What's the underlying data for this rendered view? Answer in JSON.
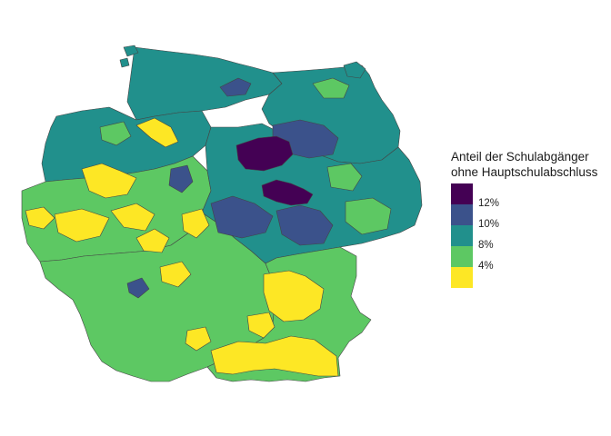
{
  "legend": {
    "title_line1": "Anteil der Schulabgänger",
    "title_line2": "ohne Hauptschulabschluss",
    "keys": [
      {
        "color": "#440154",
        "label": ""
      },
      {
        "color": "#3b528b",
        "label": "12%"
      },
      {
        "color": "#21908c",
        "label": "10%"
      },
      {
        "color": "#5dc863",
        "label": "8%"
      },
      {
        "color": "#fde725",
        "label": "4%"
      }
    ]
  },
  "colors": {
    "very_high": "#440154",
    "high": "#3b528b",
    "mid": "#21908c",
    "low": "#5dc863",
    "very_low": "#fde725",
    "border": "#444444"
  }
}
